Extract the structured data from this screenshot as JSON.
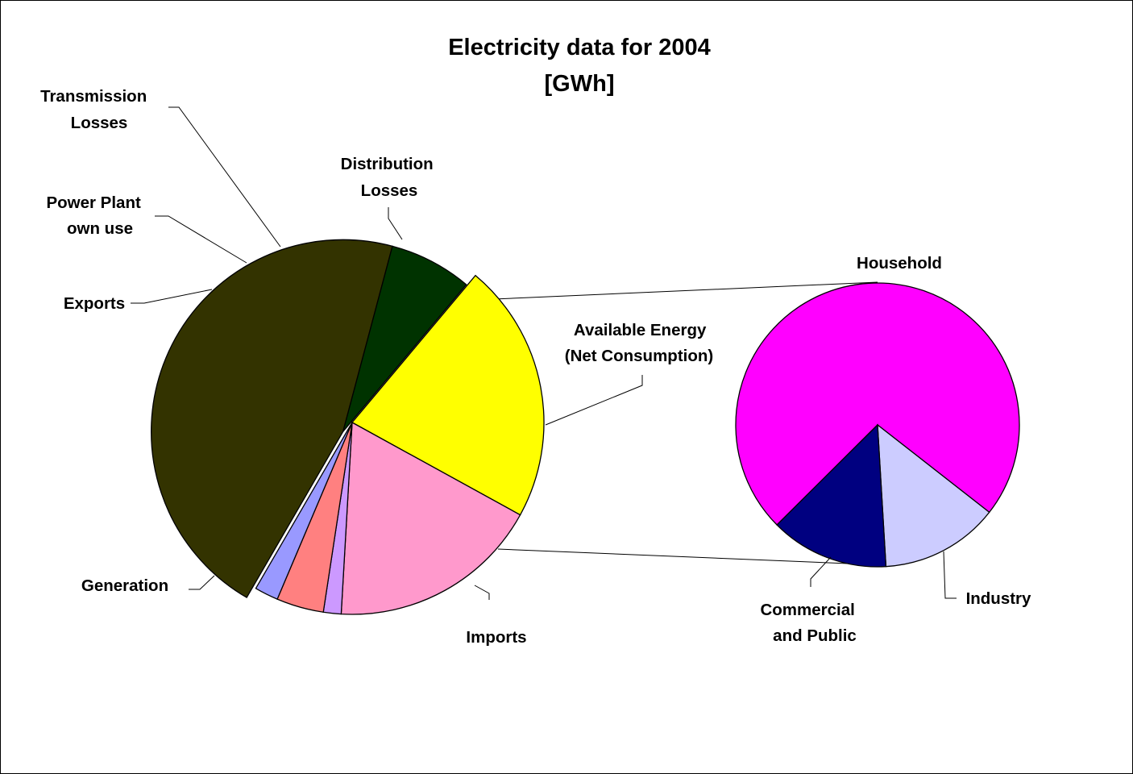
{
  "chart_data": {
    "type": "pie",
    "variant": "pie-of-pie",
    "title": "Electricity data for 2004",
    "subtitle": "[GWh]",
    "main_pie": {
      "slices": [
        {
          "label": "Generation",
          "value": 46,
          "color": "#333300",
          "exploded": true
        },
        {
          "label": "Imports",
          "value": 7,
          "color": "#003300",
          "exploded": true
        },
        {
          "label": "Available Energy (Net Consumption)",
          "value": 22,
          "color": "#ffff00",
          "exploded": false
        },
        {
          "label": "Distribution Losses",
          "value": 18,
          "color": "#ff99cc",
          "exploded": false
        },
        {
          "label": "Transmission Losses",
          "value": 1.5,
          "color": "#cc99ff",
          "exploded": false
        },
        {
          "label": "Power Plant own use",
          "value": 4,
          "color": "#ff8080",
          "exploded": false
        },
        {
          "label": "Exports",
          "value": 2,
          "color": "#9999ff",
          "exploded": false
        }
      ]
    },
    "secondary_pie": {
      "breakdown_of": "Available Energy (Net Consumption)",
      "slices": [
        {
          "label": "Household",
          "value": 73,
          "color": "#ff00ff"
        },
        {
          "label": "Industry",
          "value": 13.5,
          "color": "#ccccff"
        },
        {
          "label": "Commercial and Public",
          "value": 13.5,
          "color": "#000080"
        }
      ]
    }
  },
  "labels": {
    "transmission": [
      "Transmission",
      "Losses"
    ],
    "distribution": [
      "Distribution",
      "Losses"
    ],
    "power_plant": [
      "Power Plant",
      "own use"
    ],
    "exports": [
      "Exports"
    ],
    "available": [
      "Available Energy",
      "(Net Consumption)"
    ],
    "generation": [
      "Generation"
    ],
    "imports": [
      "Imports"
    ],
    "household": [
      "Household"
    ],
    "industry": [
      "Industry"
    ],
    "commercial": [
      "Commercial",
      "and Public"
    ]
  }
}
